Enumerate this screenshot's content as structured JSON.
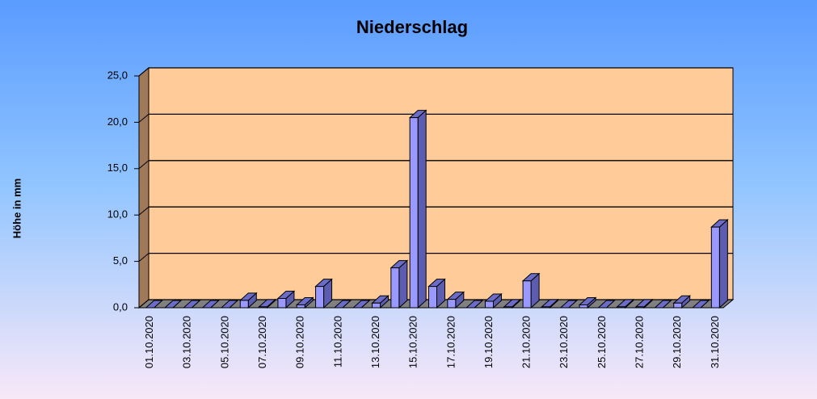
{
  "chart_data": {
    "type": "bar3d",
    "title": "Niederschlag",
    "y_label": "Höhe in mm",
    "categories": [
      "01.10.2020",
      null,
      "03.10.2020",
      null,
      "05.10.2020",
      null,
      "07.10.2020",
      null,
      "09.10.2020",
      null,
      "11.10.2020",
      null,
      "13.10.2020",
      null,
      "15.10.2020",
      null,
      "17.10.2020",
      null,
      "19.10.2020",
      null,
      "21.10.2020",
      null,
      "23.10.2020",
      null,
      "25.10.2020",
      null,
      "27.10.2020",
      null,
      "29.10.2020",
      null,
      "31.10.2020"
    ],
    "values": [
      0,
      0,
      0,
      0,
      0,
      0.8,
      0.1,
      1.0,
      0.3,
      2.3,
      0,
      0,
      0.5,
      4.3,
      20.5,
      2.3,
      0.9,
      0,
      0.7,
      0.1,
      2.9,
      0.1,
      0,
      0.3,
      0,
      0.1,
      0.1,
      0,
      0.5,
      0,
      8.7
    ],
    "color": "#9999ff",
    "ylim": [
      0,
      25
    ],
    "yticks": [
      {
        "value": 0,
        "label": "0,0"
      },
      {
        "value": 5,
        "label": "5,0"
      },
      {
        "value": 10,
        "label": "10,0"
      },
      {
        "value": 15,
        "label": "15,0"
      },
      {
        "value": 20,
        "label": "20,0"
      },
      {
        "value": 25,
        "label": "25,0"
      }
    ],
    "grid": true
  }
}
